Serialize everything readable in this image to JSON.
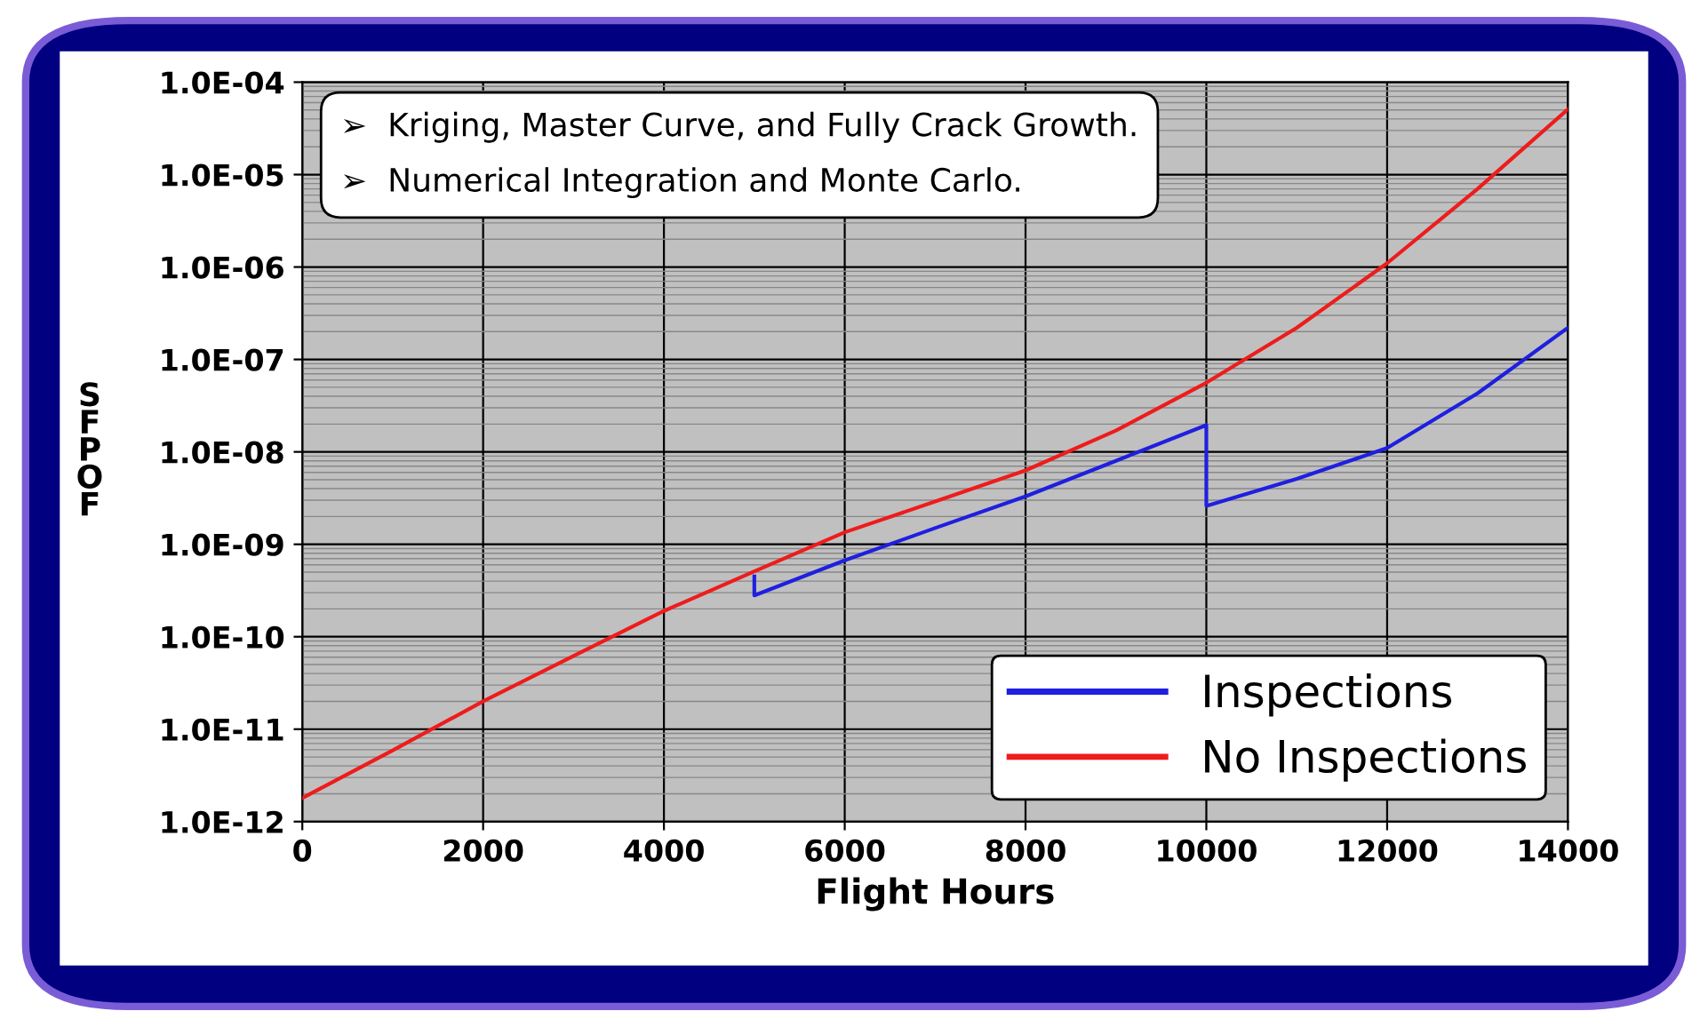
{
  "chart_data": {
    "type": "line",
    "xlabel": "Flight Hours",
    "ylabel": "SFPOF",
    "annotations": [
      "➢  Kriging, Master Curve, and Fully Crack Growth.",
      "➢  Numerical Integration and Monte Carlo."
    ],
    "series": [
      {
        "name": "Inspections",
        "color": "#1f1fe0",
        "x": [
          5000,
          5000,
          6000,
          7000,
          8000,
          9000,
          10000,
          10000,
          11000,
          12000,
          13000,
          14000
        ],
        "values": [
          4.5e-10,
          2.8e-10,
          6.7e-10,
          1.5e-09,
          3.3e-09,
          8e-09,
          1.95e-08,
          2.6e-09,
          5.1e-09,
          1.1e-08,
          4.3e-08,
          2.2e-07
        ]
      },
      {
        "name": "No Inspections",
        "color": "#ee1c1c",
        "x": [
          0,
          1000,
          2000,
          3000,
          4000,
          5000,
          6000,
          7000,
          8000,
          9000,
          10000,
          11000,
          12000,
          13000,
          14000
        ],
        "values": [
          1.8e-12,
          5.9e-12,
          2e-11,
          6.2e-11,
          1.9e-10,
          5.1e-10,
          1.35e-09,
          2.9e-09,
          6.3e-09,
          1.7e-08,
          5.6e-08,
          2.2e-07,
          1.1e-06,
          7e-06,
          5.1e-05
        ]
      }
    ],
    "log": "y",
    "xlim": [
      0,
      14000
    ],
    "xticks": [
      0,
      2000,
      4000,
      6000,
      8000,
      10000,
      12000,
      14000
    ],
    "ylim": [
      1e-12,
      0.0001
    ],
    "yticks": [
      {
        "value": 1e-12,
        "label": "1.0E-12"
      },
      {
        "value": 1e-11,
        "label": "1.0E-11"
      },
      {
        "value": 1e-10,
        "label": "1.0E-10"
      },
      {
        "value": 1e-09,
        "label": "1.0E-09"
      },
      {
        "value": 1e-08,
        "label": "1.0E-08"
      },
      {
        "value": 1e-07,
        "label": "1.0E-07"
      },
      {
        "value": 1e-06,
        "label": "1.0E-06"
      },
      {
        "value": 1e-05,
        "label": "1.0E-05"
      },
      {
        "value": 0.0001,
        "label": "1.0E-04"
      }
    ],
    "grid": true,
    "legend": "bottom right",
    "marker": "none",
    "line_style": "solid"
  }
}
